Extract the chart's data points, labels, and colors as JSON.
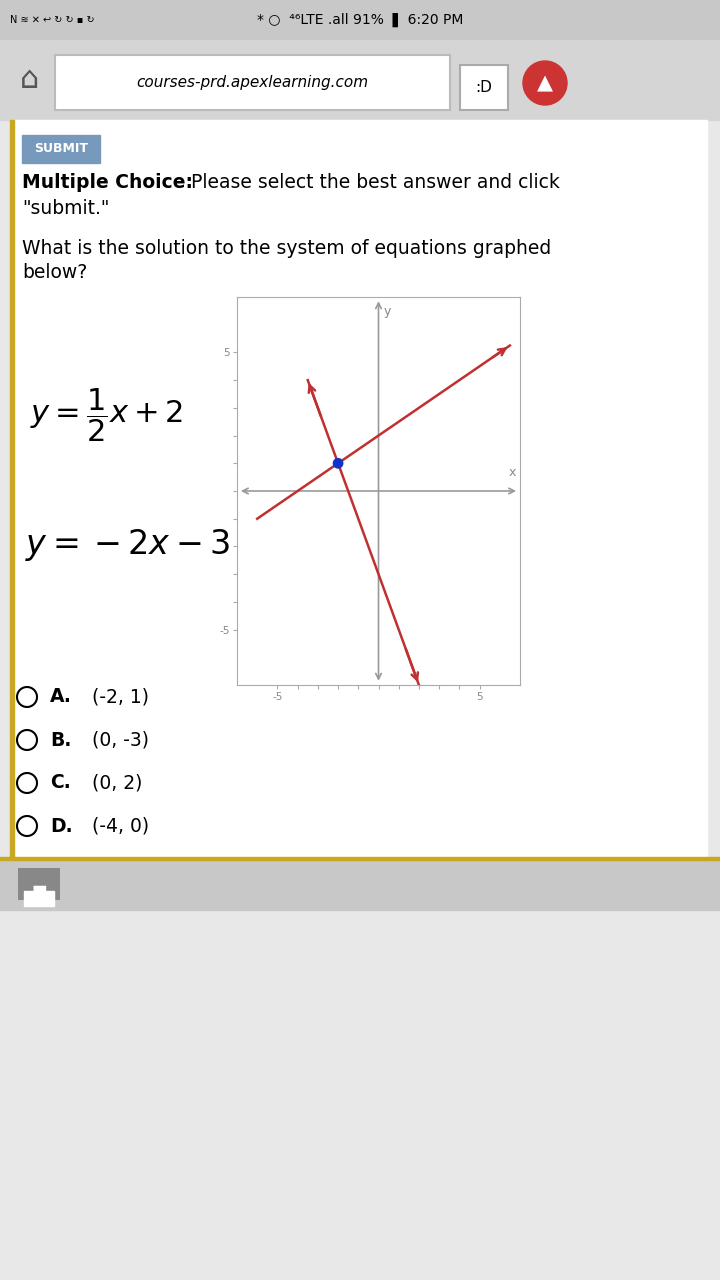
{
  "status_bar_bg": "#c8c8c8",
  "nav_bar_bg": "#d5d5d5",
  "page_bg": "#ffffff",
  "outer_bg": "#e8e8e8",
  "left_border_color": "#c8a820",
  "url_text": "courses-prd.apexlearning.com",
  "submit_btn_color": "#7799bb",
  "submit_btn_text": "SUBMIT",
  "mc_bold": "Multiple Choice:",
  "mc_rest": " Please select the best answer and click",
  "mc_line2": "\"submit.\"",
  "q1": "What is the solution to the system of equations graphed",
  "q2": "below?",
  "eq1": "$y = \\dfrac{1}{2}x + 2$",
  "eq2": "$y = -2x - 3$",
  "graph": {
    "xlim": [
      -7,
      7
    ],
    "ylim": [
      -7,
      7
    ],
    "xticks": [
      -5,
      -4,
      -3,
      -2,
      -1,
      0,
      1,
      2,
      3,
      4,
      5
    ],
    "yticks": [
      -5,
      -4,
      -3,
      -2,
      -1,
      0,
      1,
      2,
      3,
      4,
      5
    ],
    "line1_slope": 0.5,
    "line1_intercept": 2,
    "line2_slope": -2,
    "line2_intercept": -3,
    "intersection": [
      -2,
      1
    ],
    "line_color": "#c03030",
    "dot_color": "#1133cc",
    "dot_size": 60,
    "axis_color": "#999999",
    "tick_color": "#aaaaaa"
  },
  "choices": [
    {
      "label": "A.",
      "text": "(-2, 1)"
    },
    {
      "label": "B.",
      "text": "(0, -3)"
    },
    {
      "label": "C.",
      "text": "(0, 2)"
    },
    {
      "label": "D.",
      "text": "(-4, 0)"
    }
  ],
  "footer_bg": "#c8c8c8",
  "footer_border": "#c8a820"
}
